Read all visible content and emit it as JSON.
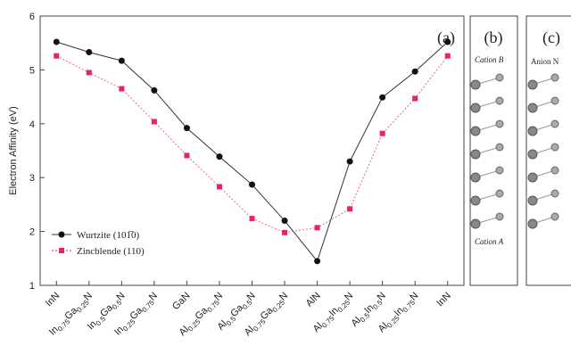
{
  "chart_data": {
    "type": "line",
    "panel_label": "(a)",
    "ylabel": "Electron Affinity (eV)",
    "categories": [
      "InN",
      "In0.75Ga0.25N",
      "In0.5Ga0.5N",
      "In0.25Ga0.75N",
      "GaN",
      "Al0.25Ga0.75N",
      "Al0.5Ga0.5N",
      "Al0.75Ga0.25N",
      "AlN",
      "Al0.75In0.25N",
      "Al0.5In0.5N",
      "Al0.25In0.75N",
      "InN"
    ],
    "series": [
      {
        "name": "Wurtzite (101̅0)",
        "color": "#111111",
        "values": [
          5.52,
          5.33,
          5.17,
          4.62,
          3.92,
          3.39,
          2.87,
          2.2,
          1.45,
          3.3,
          4.49,
          4.97,
          5.52
        ]
      },
      {
        "name": "Zincblende (110)",
        "color": "#e8245a",
        "values": [
          5.26,
          4.95,
          4.65,
          4.04,
          3.41,
          2.83,
          2.24,
          1.98,
          2.07,
          2.42,
          3.82,
          4.47,
          5.26
        ]
      }
    ],
    "ylim": [
      1,
      6
    ],
    "yticks": [
      1,
      2,
      3,
      4,
      5,
      6
    ]
  },
  "panel_b": {
    "label": "(b)",
    "top_label": "Cation B",
    "bottom_label": "Cation A"
  },
  "panel_c": {
    "label": "(c)",
    "top_label": "Anion N"
  }
}
